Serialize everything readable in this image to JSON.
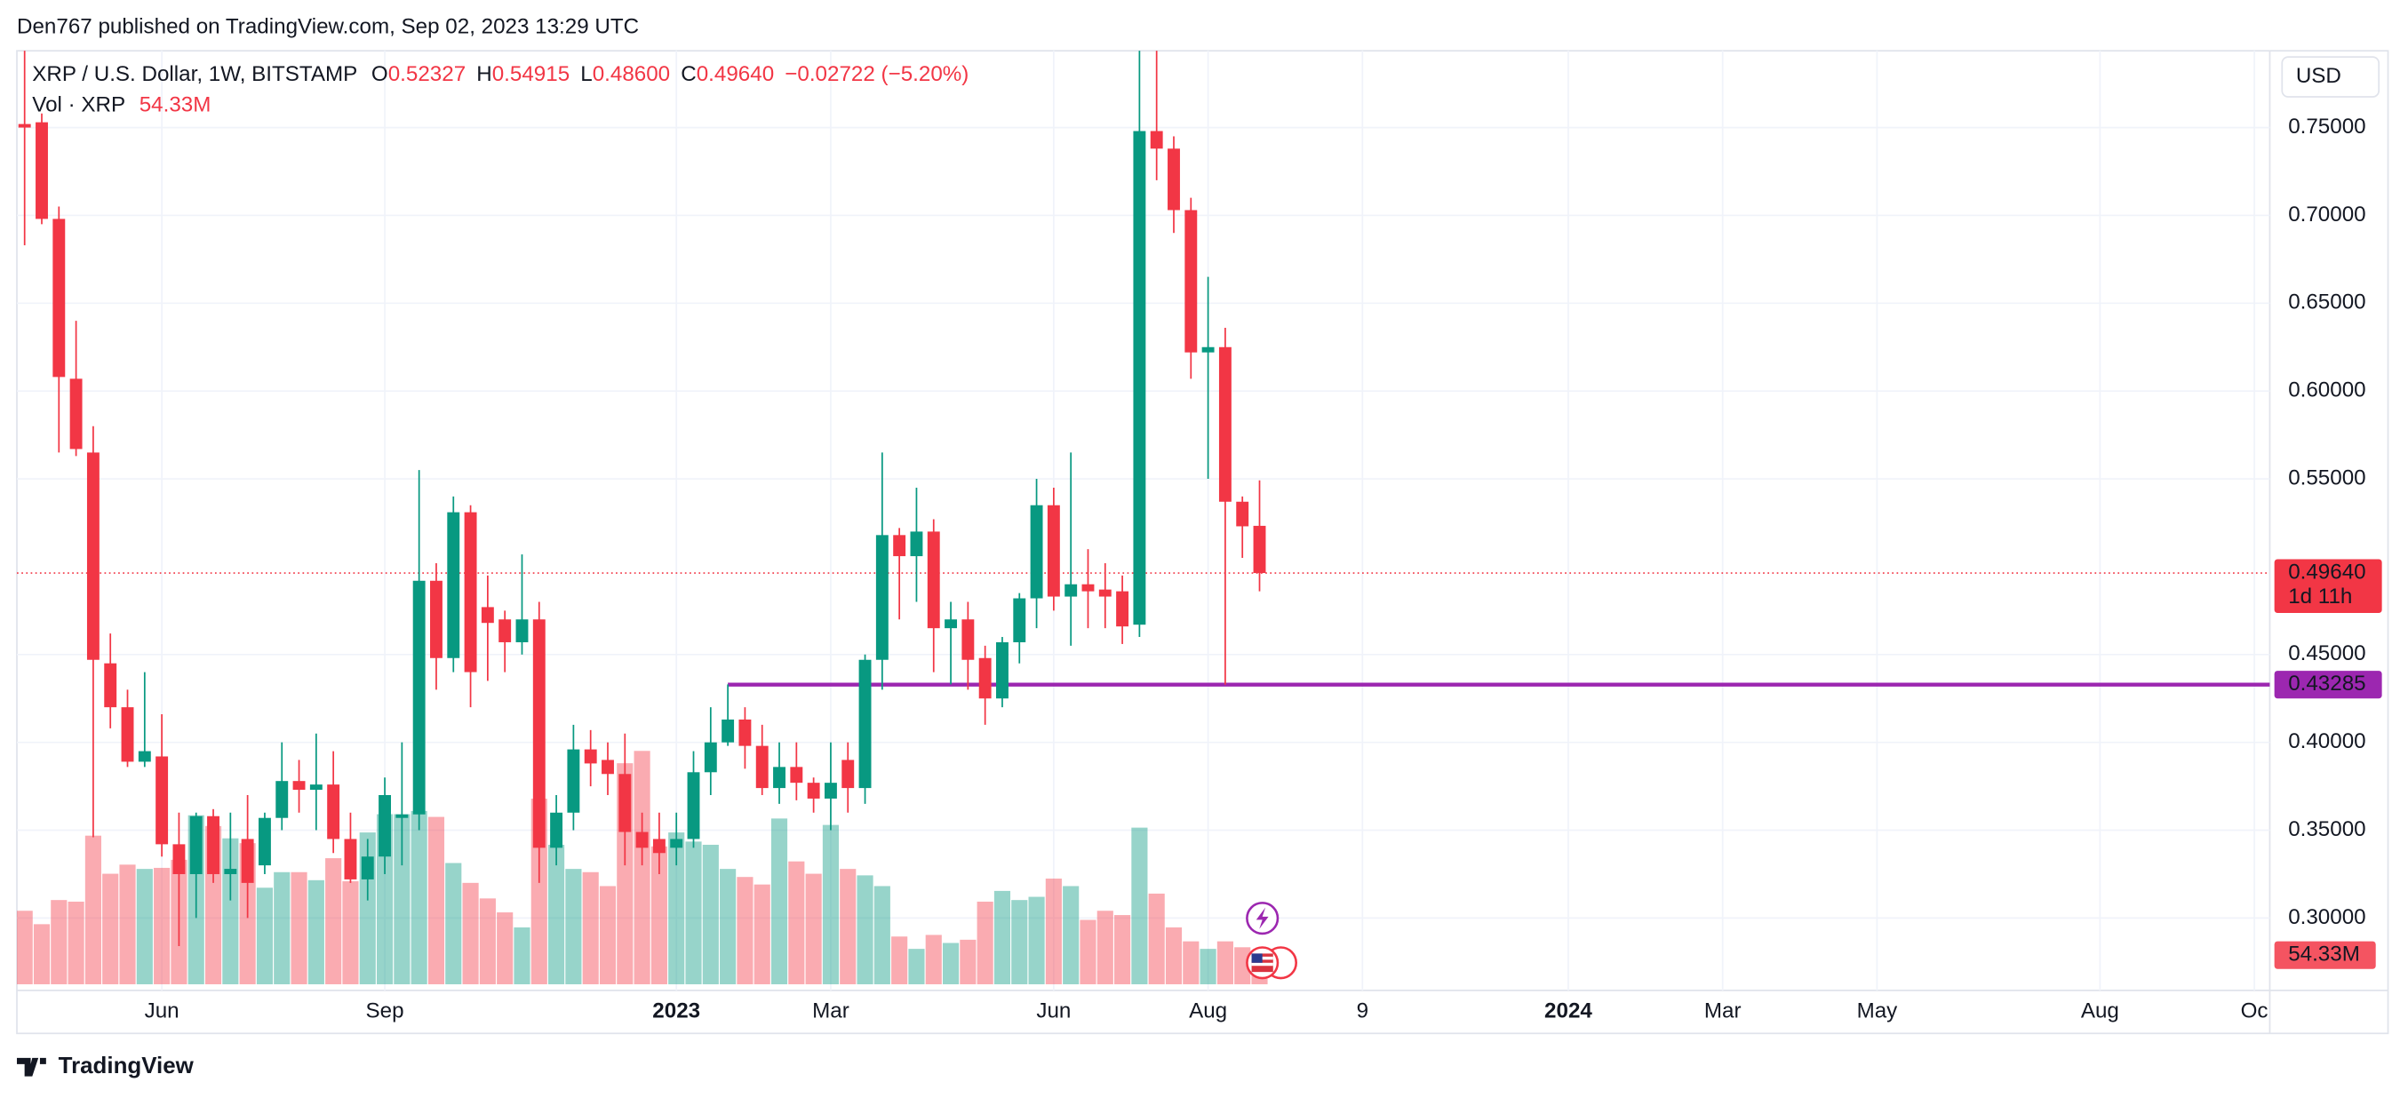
{
  "published": "Den767 published on TradingView.com, Sep 02, 2023 13:29 UTC",
  "brand": "TradingView",
  "chart_data": {
    "type": "candlestick",
    "header": {
      "symbol": "XRP / U.S. Dollar, 1W, BITSTAMP",
      "o_key": "O",
      "o": "0.52327",
      "h_key": "H",
      "h": "0.54915",
      "l_key": "L",
      "l": "0.48600",
      "c_key": "C",
      "c": "0.49640",
      "change": "−0.02722 (−5.20%)",
      "vol_name": "Vol · XRP",
      "vol": "54.33M"
    },
    "currency": "USD",
    "up_color": "#089981",
    "down_color": "#f23645",
    "open": [
      0.752,
      0.753,
      0.698,
      0.607,
      0.565,
      0.445,
      0.42,
      0.389,
      0.392,
      0.342,
      0.325,
      0.358,
      0.325,
      0.345,
      0.33,
      0.357,
      0.378,
      0.373,
      0.376,
      0.345,
      0.322,
      0.335,
      0.357,
      0.359,
      0.492,
      0.448,
      0.531,
      0.477,
      0.47,
      0.457,
      0.47,
      0.34,
      0.36,
      0.396,
      0.39,
      0.382,
      0.349,
      0.345,
      0.34,
      0.345,
      0.383,
      0.4,
      0.413,
      0.398,
      0.374,
      0.386,
      0.377,
      0.368,
      0.39,
      0.374,
      0.447,
      0.518,
      0.506,
      0.52,
      0.465,
      0.47,
      0.448,
      0.425,
      0.457,
      0.482,
      0.535,
      0.483,
      0.49,
      0.487,
      0.486,
      0.467,
      0.748,
      0.738,
      0.703,
      0.622,
      0.625,
      0.537,
      0.52327
    ],
    "high": [
      0.8,
      0.758,
      0.705,
      0.64,
      0.58,
      0.462,
      0.43,
      0.44,
      0.416,
      0.36,
      0.36,
      0.362,
      0.36,
      0.37,
      0.36,
      0.4,
      0.39,
      0.405,
      0.395,
      0.36,
      0.345,
      0.38,
      0.4,
      0.555,
      0.502,
      0.54,
      0.535,
      0.495,
      0.475,
      0.507,
      0.48,
      0.37,
      0.41,
      0.407,
      0.4,
      0.405,
      0.36,
      0.36,
      0.36,
      0.395,
      0.42,
      0.433,
      0.42,
      0.41,
      0.4,
      0.4,
      0.38,
      0.4,
      0.4,
      0.45,
      0.565,
      0.522,
      0.545,
      0.527,
      0.48,
      0.48,
      0.455,
      0.46,
      0.485,
      0.55,
      0.545,
      0.565,
      0.51,
      0.502,
      0.495,
      0.82,
      0.8,
      0.745,
      0.71,
      0.665,
      0.636,
      0.54,
      0.54915
    ],
    "low": [
      0.683,
      0.695,
      0.565,
      0.563,
      0.346,
      0.408,
      0.386,
      0.386,
      0.335,
      0.284,
      0.3,
      0.32,
      0.31,
      0.3,
      0.325,
      0.35,
      0.36,
      0.35,
      0.337,
      0.32,
      0.31,
      0.325,
      0.33,
      0.35,
      0.43,
      0.44,
      0.42,
      0.435,
      0.44,
      0.45,
      0.32,
      0.33,
      0.35,
      0.375,
      0.37,
      0.33,
      0.33,
      0.325,
      0.33,
      0.34,
      0.37,
      0.398,
      0.385,
      0.37,
      0.365,
      0.367,
      0.36,
      0.35,
      0.36,
      0.365,
      0.43,
      0.47,
      0.48,
      0.44,
      0.433,
      0.43,
      0.41,
      0.42,
      0.445,
      0.465,
      0.475,
      0.455,
      0.465,
      0.465,
      0.456,
      0.46,
      0.72,
      0.69,
      0.607,
      0.55,
      0.43285,
      0.505,
      0.486
    ],
    "close": [
      0.75,
      0.698,
      0.608,
      0.567,
      0.447,
      0.42,
      0.389,
      0.395,
      0.342,
      0.325,
      0.358,
      0.325,
      0.328,
      0.32,
      0.357,
      0.378,
      0.373,
      0.376,
      0.345,
      0.322,
      0.335,
      0.37,
      0.359,
      0.492,
      0.448,
      0.531,
      0.44,
      0.468,
      0.457,
      0.47,
      0.34,
      0.36,
      0.396,
      0.388,
      0.382,
      0.349,
      0.34,
      0.337,
      0.345,
      0.383,
      0.4,
      0.413,
      0.398,
      0.374,
      0.386,
      0.377,
      0.368,
      0.377,
      0.374,
      0.447,
      0.518,
      0.506,
      0.52,
      0.465,
      0.47,
      0.447,
      0.425,
      0.457,
      0.482,
      0.535,
      0.483,
      0.49,
      0.486,
      0.483,
      0.466,
      0.748,
      0.738,
      0.703,
      0.622,
      0.625,
      0.537,
      0.523,
      0.4964
    ],
    "volume": [
      137000000,
      112000000,
      157000000,
      154000000,
      277000000,
      206000000,
      223000000,
      215000000,
      217000000,
      232000000,
      315000000,
      295000000,
      272000000,
      263000000,
      180000000,
      209000000,
      209000000,
      194000000,
      235000000,
      192000000,
      283000000,
      317000000,
      317000000,
      323000000,
      312000000,
      226000000,
      189000000,
      160000000,
      134000000,
      106000000,
      346000000,
      260000000,
      215000000,
      209000000,
      183000000,
      412000000,
      435000000,
      257000000,
      283000000,
      266000000,
      260000000,
      215000000,
      200000000,
      186000000,
      309000000,
      229000000,
      206000000,
      297000000,
      215000000,
      203000000,
      183000000,
      89000000,
      66000000,
      92000000,
      77000000,
      83000000,
      154000000,
      174000000,
      157000000,
      163000000,
      197000000,
      183000000,
      120000000,
      137000000,
      129000000,
      292000000,
      169000000,
      106000000,
      80000000,
      66000000,
      80000000,
      69000000,
      54330000
    ],
    "volume_label": "54.33M",
    "xlim": [
      -0.45,
      130.9
    ],
    "xticks": [
      {
        "value": 8,
        "label": "Jun"
      },
      {
        "value": 21,
        "label": "Sep"
      },
      {
        "value": 38,
        "label": "2023"
      },
      {
        "value": 47,
        "label": "Mar"
      },
      {
        "value": 60,
        "label": "Jun"
      },
      {
        "value": 69,
        "label": "Aug"
      },
      {
        "value": 78,
        "label": "9"
      },
      {
        "value": 90,
        "label": "2024"
      },
      {
        "value": 99,
        "label": "Mar"
      },
      {
        "value": 108,
        "label": "May"
      },
      {
        "value": 121,
        "label": "Aug"
      },
      {
        "value": 130,
        "label": "Oc"
      }
    ],
    "ylim": [
      0.2588,
      0.7937
    ],
    "yticks": [
      {
        "value": 0.3,
        "label": "0.30000"
      },
      {
        "value": 0.35,
        "label": "0.35000"
      },
      {
        "value": 0.4,
        "label": "0.40000"
      },
      {
        "value": 0.45,
        "label": "0.45000"
      },
      {
        "value": 0.55,
        "label": "0.55000"
      },
      {
        "value": 0.6,
        "label": "0.60000"
      },
      {
        "value": 0.65,
        "label": "0.65000"
      },
      {
        "value": 0.7,
        "label": "0.70000"
      },
      {
        "value": 0.75,
        "label": "0.75000"
      }
    ],
    "grid": true,
    "last_price": {
      "value": 0.4964,
      "label": "0.49640",
      "countdown": "1d 11h",
      "color": "#f23645"
    },
    "hline": {
      "value": 0.43285,
      "label": "0.43285",
      "x": 41,
      "color": "#9c27b0"
    }
  }
}
